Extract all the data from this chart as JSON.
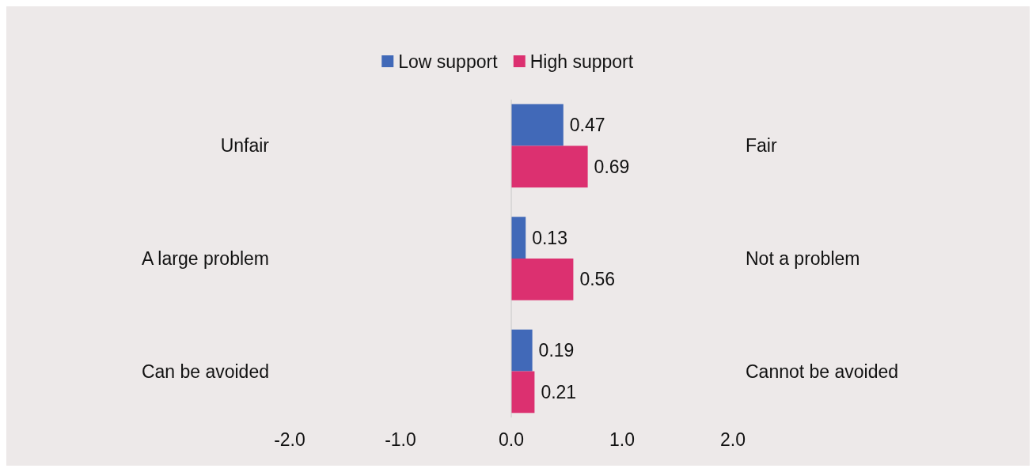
{
  "chart_data": {
    "type": "bar",
    "orientation": "horizontal",
    "categories": [
      "Unfair",
      "A large problem",
      "Can be avoided"
    ],
    "series": [
      {
        "name": "Low support",
        "color": "#4169b8",
        "values": [
          0.47,
          0.13,
          0.19
        ]
      },
      {
        "name": "High support",
        "color": "#dc3070",
        "values": [
          0.69,
          0.56,
          0.21
        ]
      }
    ],
    "xlim": [
      -2,
      2
    ],
    "xticks": [
      {
        "value": -2,
        "label": "-2.0"
      },
      {
        "value": -1,
        "label": "-1.0"
      },
      {
        "value": 0,
        "label": "0.0"
      },
      {
        "value": 1,
        "label": "1.0"
      },
      {
        "value": 2,
        "label": "2.0"
      }
    ],
    "annotations": [
      "Fair",
      "Not a problem",
      "Cannot be avoided"
    ],
    "data_labels": true,
    "legend": "top"
  }
}
